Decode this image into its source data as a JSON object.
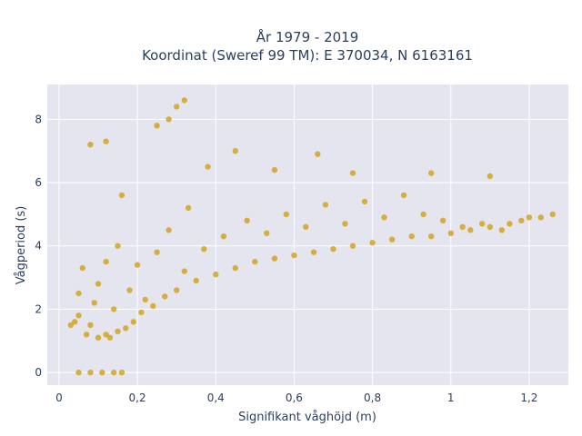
{
  "chart_data": {
    "type": "scatter",
    "title_line1": "År 1979 - 2019",
    "title_line2": "Koordinat (Sweref 99 TM): E 370034, N 6163161",
    "xlabel": "Signifikant våghöjd (m)",
    "ylabel": "Vågperiod (s)",
    "xlim": [
      -0.03,
      1.3
    ],
    "ylim": [
      -0.4,
      9.1
    ],
    "x_ticks": [
      0,
      0.2,
      0.4,
      0.6,
      0.8,
      1,
      1.2
    ],
    "x_tick_labels": [
      "0",
      "0,2",
      "0,4",
      "0,6",
      "0,8",
      "1",
      "1,2"
    ],
    "y_ticks": [
      0,
      2,
      4,
      6,
      8
    ],
    "y_tick_labels": [
      "0",
      "2",
      "4",
      "6",
      "8"
    ],
    "grid": true,
    "background_color": "#e5e5f0",
    "marker_color": "#d4a520",
    "series": [
      {
        "values": [
          [
            0.05,
            0
          ],
          [
            0.08,
            0
          ],
          [
            0.11,
            0
          ],
          [
            0.14,
            0
          ],
          [
            0.16,
            0
          ],
          [
            0.03,
            1.5
          ],
          [
            0.04,
            1.6
          ],
          [
            0.05,
            2.5
          ],
          [
            0.06,
            3.3
          ],
          [
            0.05,
            1.8
          ],
          [
            0.07,
            1.2
          ],
          [
            0.08,
            1.5
          ],
          [
            0.09,
            2.2
          ],
          [
            0.1,
            1.1
          ],
          [
            0.1,
            2.8
          ],
          [
            0.12,
            1.2
          ],
          [
            0.12,
            3.5
          ],
          [
            0.13,
            1.1
          ],
          [
            0.14,
            2.0
          ],
          [
            0.15,
            1.3
          ],
          [
            0.15,
            4.0
          ],
          [
            0.16,
            5.6
          ],
          [
            0.17,
            1.4
          ],
          [
            0.18,
            2.6
          ],
          [
            0.19,
            1.6
          ],
          [
            0.2,
            3.4
          ],
          [
            0.21,
            1.9
          ],
          [
            0.22,
            2.3
          ],
          [
            0.24,
            2.1
          ],
          [
            0.25,
            3.8
          ],
          [
            0.27,
            2.4
          ],
          [
            0.28,
            4.5
          ],
          [
            0.3,
            2.6
          ],
          [
            0.32,
            3.2
          ],
          [
            0.33,
            5.2
          ],
          [
            0.35,
            2.9
          ],
          [
            0.37,
            3.9
          ],
          [
            0.4,
            3.1
          ],
          [
            0.42,
            4.3
          ],
          [
            0.45,
            3.3
          ],
          [
            0.48,
            4.8
          ],
          [
            0.5,
            3.5
          ],
          [
            0.53,
            4.4
          ],
          [
            0.55,
            3.6
          ],
          [
            0.58,
            5.0
          ],
          [
            0.6,
            3.7
          ],
          [
            0.63,
            4.6
          ],
          [
            0.65,
            3.8
          ],
          [
            0.68,
            5.3
          ],
          [
            0.7,
            3.9
          ],
          [
            0.73,
            4.7
          ],
          [
            0.75,
            4.0
          ],
          [
            0.78,
            5.4
          ],
          [
            0.8,
            4.1
          ],
          [
            0.83,
            4.9
          ],
          [
            0.85,
            4.2
          ],
          [
            0.88,
            5.6
          ],
          [
            0.9,
            4.3
          ],
          [
            0.93,
            5.0
          ],
          [
            0.95,
            4.3
          ],
          [
            0.98,
            4.8
          ],
          [
            1.0,
            4.4
          ],
          [
            1.03,
            4.6
          ],
          [
            1.05,
            4.5
          ],
          [
            1.08,
            4.7
          ],
          [
            1.1,
            4.6
          ],
          [
            1.13,
            4.5
          ],
          [
            1.15,
            4.7
          ],
          [
            1.18,
            4.8
          ],
          [
            1.2,
            4.9
          ],
          [
            1.23,
            4.9
          ],
          [
            1.26,
            5.0
          ],
          [
            0.28,
            8.0
          ],
          [
            0.3,
            8.4
          ],
          [
            0.32,
            8.6
          ],
          [
            0.25,
            7.8
          ],
          [
            0.08,
            7.2
          ],
          [
            0.12,
            7.3
          ],
          [
            0.45,
            7.0
          ],
          [
            0.55,
            6.4
          ],
          [
            0.66,
            6.9
          ],
          [
            0.75,
            6.3
          ],
          [
            0.95,
            6.3
          ],
          [
            1.1,
            6.2
          ],
          [
            0.38,
            6.5
          ]
        ]
      }
    ]
  }
}
